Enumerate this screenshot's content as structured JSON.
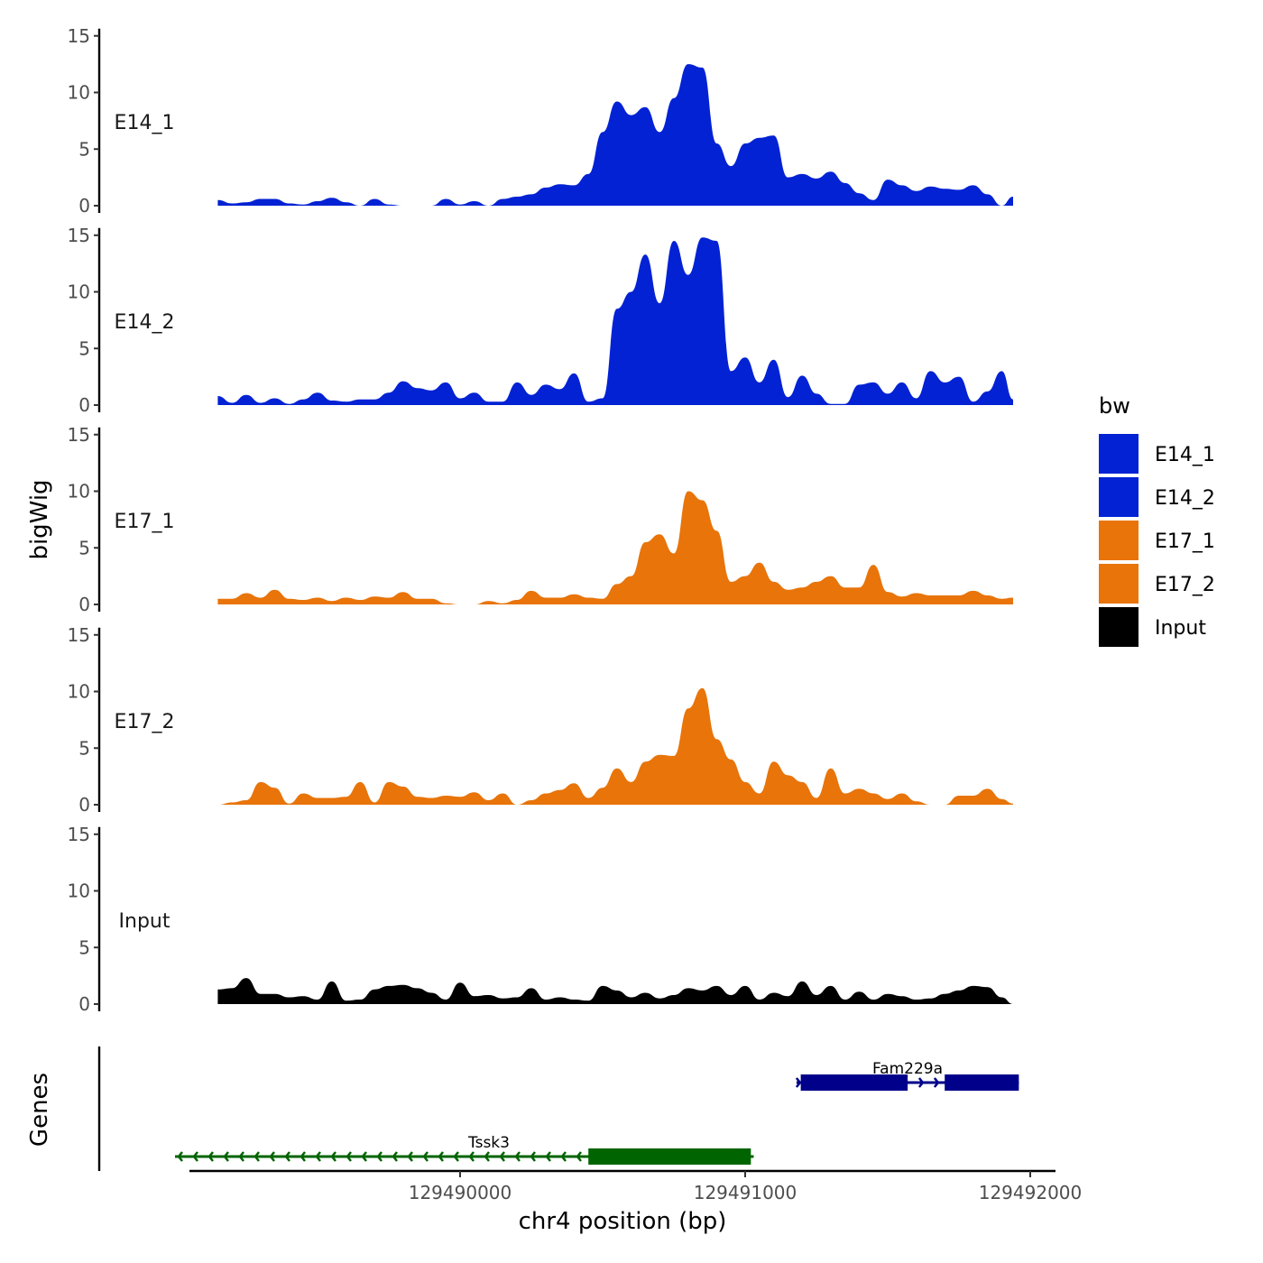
{
  "chart_data": {
    "type": "area",
    "chromosome": "chr4",
    "xlabel": "chr4 position (bp)",
    "ylabel": "bigWig",
    "genes_label": "Genes",
    "xlim": [
      129489000,
      129492000
    ],
    "x_ticks": [
      129490000,
      129491000,
      129492000
    ],
    "x_tick_labels": [
      "129490000",
      "129491000",
      "129492000"
    ],
    "ylim": [
      0,
      15
    ],
    "y_ticks": [
      0,
      5,
      10,
      15
    ],
    "y_tick_labels": [
      "0",
      "5",
      "10",
      "15"
    ],
    "legend": {
      "title": "bw",
      "position": "right",
      "entries": [
        {
          "label": "E14_1",
          "color": "#0222d4"
        },
        {
          "label": "E14_2",
          "color": "#0222d4"
        },
        {
          "label": "E17_1",
          "color": "#e8740a"
        },
        {
          "label": "E17_2",
          "color": "#e8740a"
        },
        {
          "label": "Input",
          "color": "#000000"
        }
      ]
    },
    "series": [
      {
        "name": "E14_1",
        "color": "#0222d4",
        "x": [
          129489150,
          129489200,
          129489250,
          129489300,
          129489350,
          129489400,
          129489450,
          129489500,
          129489550,
          129489600,
          129489650,
          129489700,
          129489750,
          129489800,
          129489850,
          129489900,
          129489950,
          129490000,
          129490050,
          129490100,
          129490150,
          129490200,
          129490250,
          129490300,
          129490350,
          129490400,
          129490450,
          129490500,
          129490550,
          129490600,
          129490650,
          129490700,
          129490750,
          129490800,
          129490850,
          129490900,
          129490950,
          129491000,
          129491050,
          129491100,
          129491150,
          129491200,
          129491250,
          129491300,
          129491350,
          129491400,
          129491450,
          129491500,
          129491550,
          129491600,
          129491650,
          129491700,
          129491750,
          129491800,
          129491850,
          129491900,
          129491940
        ],
        "values": [
          0.5,
          0.2,
          0.3,
          0.6,
          0.6,
          0.2,
          0.1,
          0.4,
          0.7,
          0.3,
          0.0,
          0.6,
          0.1,
          0.0,
          0.0,
          0.0,
          0.6,
          0.1,
          0.4,
          0.0,
          0.6,
          0.8,
          1.0,
          1.6,
          1.9,
          1.8,
          2.8,
          6.5,
          9.2,
          8.0,
          8.7,
          6.5,
          9.5,
          12.5,
          12.2,
          5.5,
          3.5,
          5.5,
          6.0,
          6.2,
          2.5,
          2.8,
          2.4,
          3.0,
          2.0,
          1.1,
          0.5,
          2.3,
          1.8,
          1.3,
          1.7,
          1.5,
          1.4,
          1.8,
          1.0,
          0.0,
          0.8
        ]
      },
      {
        "name": "E14_2",
        "color": "#0222d4",
        "x": [
          129489150,
          129489200,
          129489250,
          129489300,
          129489350,
          129489400,
          129489450,
          129489500,
          129489550,
          129489600,
          129489650,
          129489700,
          129489750,
          129489800,
          129489850,
          129489900,
          129489950,
          129490000,
          129490050,
          129490100,
          129490150,
          129490200,
          129490250,
          129490300,
          129490350,
          129490400,
          129490450,
          129490500,
          129490550,
          129490600,
          129490650,
          129490700,
          129490750,
          129490800,
          129490850,
          129490900,
          129490950,
          129491000,
          129491050,
          129491100,
          129491150,
          129491200,
          129491250,
          129491300,
          129491350,
          129491400,
          129491450,
          129491500,
          129491550,
          129491600,
          129491650,
          129491700,
          129491750,
          129491800,
          129491850,
          129491900,
          129491940
        ],
        "values": [
          0.8,
          0.2,
          0.9,
          0.2,
          0.6,
          0.1,
          0.5,
          1.1,
          0.4,
          0.3,
          0.5,
          0.5,
          1.1,
          2.1,
          1.5,
          1.3,
          2.0,
          0.6,
          1.1,
          0.3,
          0.3,
          2.0,
          0.9,
          1.8,
          1.4,
          2.8,
          0.3,
          0.6,
          8.5,
          10.0,
          13.3,
          9.0,
          14.5,
          11.5,
          14.8,
          14.5,
          3.0,
          4.2,
          2.0,
          4.0,
          0.7,
          2.6,
          1.0,
          0.1,
          0.1,
          1.8,
          2.0,
          1.0,
          2.0,
          0.6,
          3.0,
          2.0,
          2.5,
          0.3,
          1.2,
          3.0,
          0.5
        ]
      },
      {
        "name": "E17_1",
        "color": "#e8740a",
        "x": [
          129489150,
          129489200,
          129489250,
          129489300,
          129489350,
          129489400,
          129489450,
          129489500,
          129489550,
          129489600,
          129489650,
          129489700,
          129489750,
          129489800,
          129489850,
          129489900,
          129489950,
          129490000,
          129490050,
          129490100,
          129490150,
          129490200,
          129490250,
          129490300,
          129490350,
          129490400,
          129490450,
          129490500,
          129490550,
          129490600,
          129490650,
          129490700,
          129490750,
          129490800,
          129490850,
          129490900,
          129490950,
          129491000,
          129491050,
          129491100,
          129491150,
          129491200,
          129491250,
          129491300,
          129491350,
          129491400,
          129491450,
          129491500,
          129491550,
          129491600,
          129491650,
          129491700,
          129491750,
          129491800,
          129491850,
          129491900,
          129491940
        ],
        "values": [
          0.5,
          0.5,
          1.0,
          0.6,
          1.3,
          0.5,
          0.4,
          0.6,
          0.3,
          0.6,
          0.4,
          0.7,
          0.6,
          1.1,
          0.5,
          0.5,
          0.1,
          0.0,
          0.0,
          0.3,
          0.1,
          0.4,
          1.2,
          0.6,
          0.6,
          0.9,
          0.6,
          0.5,
          1.8,
          2.5,
          5.5,
          6.2,
          4.5,
          10.0,
          9.2,
          6.5,
          2.0,
          2.5,
          3.7,
          2.0,
          1.3,
          1.5,
          2.0,
          2.5,
          1.5,
          1.5,
          3.5,
          1.1,
          0.7,
          1.0,
          0.8,
          0.8,
          0.8,
          1.2,
          0.8,
          0.5,
          0.6
        ]
      },
      {
        "name": "E17_2",
        "color": "#e8740a",
        "x": [
          129489150,
          129489200,
          129489250,
          129489300,
          129489350,
          129489400,
          129489450,
          129489500,
          129489550,
          129489600,
          129489650,
          129489700,
          129489750,
          129489800,
          129489850,
          129489900,
          129489950,
          129490000,
          129490050,
          129490100,
          129490150,
          129490200,
          129490250,
          129490300,
          129490350,
          129490400,
          129490450,
          129490500,
          129490550,
          129490600,
          129490650,
          129490700,
          129490750,
          129490800,
          129490850,
          129490900,
          129490950,
          129491000,
          129491050,
          129491100,
          129491150,
          129491200,
          129491250,
          129491300,
          129491350,
          129491400,
          129491450,
          129491500,
          129491550,
          129491600,
          129491650,
          129491700,
          129491750,
          129491800,
          129491850,
          129491900,
          129491940
        ],
        "values": [
          0.0,
          0.2,
          0.4,
          2.0,
          1.5,
          0.1,
          1.0,
          0.6,
          0.6,
          0.7,
          2.0,
          0.2,
          2.0,
          1.6,
          0.7,
          0.6,
          0.8,
          0.7,
          1.1,
          0.4,
          1.0,
          0.0,
          0.4,
          1.0,
          1.3,
          1.9,
          0.6,
          1.5,
          3.2,
          2.0,
          3.8,
          4.4,
          4.3,
          8.5,
          10.3,
          5.8,
          4.0,
          2.0,
          1.0,
          3.8,
          2.6,
          2.0,
          0.6,
          3.2,
          1.0,
          1.4,
          1.0,
          0.5,
          1.0,
          0.3,
          0.0,
          0.0,
          0.8,
          0.8,
          1.4,
          0.5,
          0.1
        ]
      },
      {
        "name": "Input",
        "color": "#000000",
        "x": [
          129489150,
          129489200,
          129489250,
          129489300,
          129489350,
          129489400,
          129489450,
          129489500,
          129489550,
          129489600,
          129489650,
          129489700,
          129489750,
          129489800,
          129489850,
          129489900,
          129489950,
          129490000,
          129490050,
          129490100,
          129490150,
          129490200,
          129490250,
          129490300,
          129490350,
          129490400,
          129490450,
          129490500,
          129490550,
          129490600,
          129490650,
          129490700,
          129490750,
          129490800,
          129490850,
          129490900,
          129490950,
          129491000,
          129491050,
          129491100,
          129491150,
          129491200,
          129491250,
          129491300,
          129491350,
          129491400,
          129491450,
          129491500,
          129491550,
          129491600,
          129491650,
          129491700,
          129491750,
          129491800,
          129491850,
          129491900,
          129491940
        ],
        "values": [
          1.3,
          1.4,
          2.3,
          0.9,
          0.9,
          0.6,
          0.7,
          0.4,
          2.0,
          0.3,
          0.4,
          1.3,
          1.6,
          1.7,
          1.4,
          1.0,
          0.4,
          1.9,
          0.7,
          0.8,
          0.5,
          0.6,
          1.4,
          0.4,
          0.6,
          0.4,
          0.3,
          1.6,
          1.2,
          0.6,
          1.0,
          0.5,
          0.8,
          1.4,
          1.2,
          1.6,
          0.8,
          1.6,
          0.4,
          1.0,
          0.7,
          2.0,
          0.8,
          1.6,
          0.4,
          1.1,
          0.4,
          0.9,
          0.7,
          0.4,
          0.5,
          0.9,
          1.2,
          1.6,
          1.5,
          0.6,
          0.0
        ]
      }
    ],
    "genes": [
      {
        "name": "Tssk3",
        "strand": "-",
        "color": "#006400",
        "start": 129489000,
        "end": 129491030,
        "exons": [
          [
            129490450,
            129491020
          ]
        ]
      },
      {
        "name": "Fam229a",
        "strand": "+",
        "color": "#00008b",
        "start": 129491180,
        "end": 129491960,
        "exons": [
          [
            129491195,
            129491570
          ],
          [
            129491700,
            129491960
          ]
        ]
      }
    ]
  }
}
